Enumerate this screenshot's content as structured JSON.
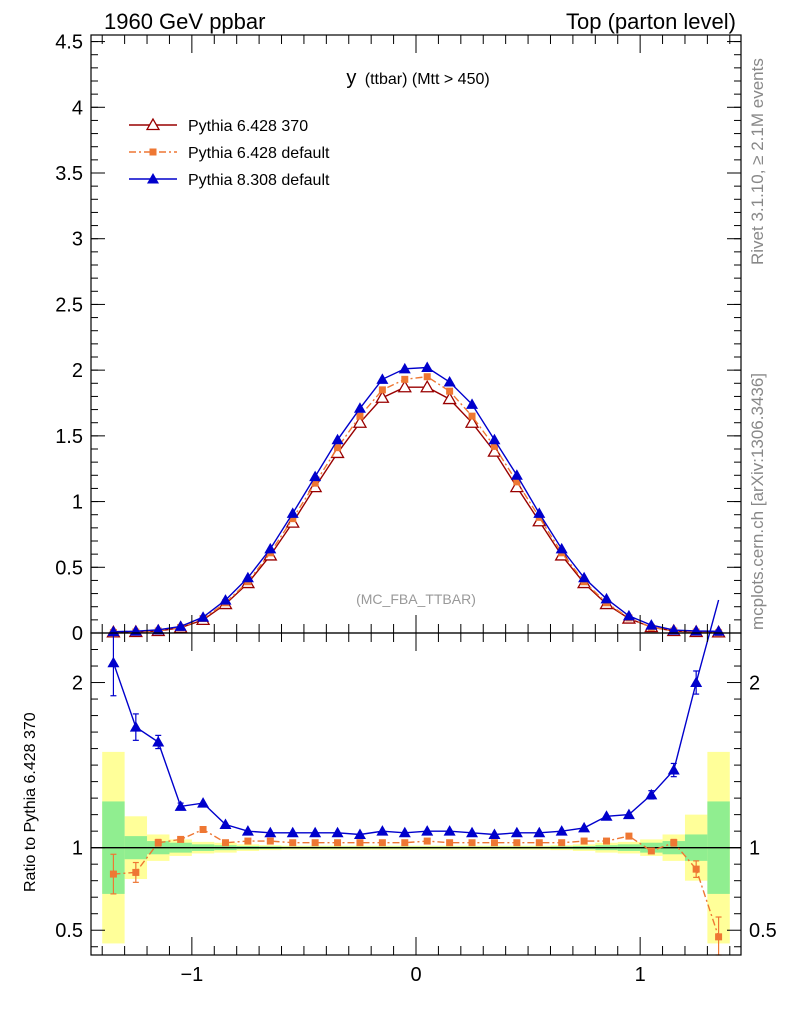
{
  "header": {
    "left": "1960 GeV ppbar",
    "right": "Top (parton level)"
  },
  "side_labels": {
    "rivet": "Rivet 3.1.10, ≥ 2.1M events",
    "mcplots": "mcplots.cern.ch [arXiv:1306.3436]"
  },
  "chart_data": {
    "type": "line",
    "title_main": "y",
    "title_rest": "(ttbar) (Mtt > 450)",
    "analysis": "(MC_FBA_TTBAR)",
    "xlim": [
      -1.45,
      1.45
    ],
    "ylim": [
      0,
      4.55
    ],
    "ratio_ylim": [
      0.35,
      2.3
    ],
    "ratio_ylabel": "Ratio to Pythia 6.428 370",
    "x_ticks": [
      -1,
      0,
      1
    ],
    "x_tick_labels": [
      "−1",
      "0",
      "1"
    ],
    "y_ticks": [
      0,
      0.5,
      1,
      1.5,
      2,
      2.5,
      3,
      3.5,
      4,
      4.5
    ],
    "y_tick_labels": [
      "0",
      "0.5",
      "1",
      "1.5",
      "2",
      "2.5",
      "3",
      "3.5",
      "4",
      "4.5"
    ],
    "ratio_ticks": [
      0.5,
      1,
      2
    ],
    "ratio_tick_labels": [
      "0.5",
      "1",
      "2"
    ],
    "legend_position": "top-left",
    "x": [
      -1.35,
      -1.25,
      -1.15,
      -1.05,
      -0.95,
      -0.85,
      -0.75,
      -0.65,
      -0.55,
      -0.45,
      -0.35,
      -0.25,
      -0.15,
      -0.05,
      0.05,
      0.15,
      0.25,
      0.35,
      0.45,
      0.55,
      0.65,
      0.75,
      0.85,
      0.95,
      1.05,
      1.15,
      1.25,
      1.35
    ],
    "series": [
      {
        "name": "Pythia 6.428 370",
        "color": "#990000",
        "marker": "open-triangle",
        "values": [
          0.005,
          0.008,
          0.015,
          0.04,
          0.1,
          0.22,
          0.38,
          0.59,
          0.84,
          1.11,
          1.37,
          1.6,
          1.79,
          1.87,
          1.87,
          1.78,
          1.6,
          1.38,
          1.11,
          0.85,
          0.59,
          0.38,
          0.22,
          0.11,
          0.045,
          0.015,
          0.008,
          0.005
        ],
        "ratio": [
          1,
          1,
          1,
          1,
          1,
          1,
          1,
          1,
          1,
          1,
          1,
          1,
          1,
          1,
          1,
          1,
          1,
          1,
          1,
          1,
          1,
          1,
          1,
          1,
          1,
          1,
          1,
          1
        ],
        "ratio_err": [
          0,
          0,
          0,
          0,
          0,
          0,
          0,
          0,
          0,
          0,
          0,
          0,
          0,
          0,
          0,
          0,
          0,
          0,
          0,
          0,
          0,
          0,
          0,
          0,
          0,
          0,
          0,
          0
        ]
      },
      {
        "name": "Pythia 6.428 default",
        "color": "#ee7733",
        "marker": "square",
        "values": [
          0.004,
          0.007,
          0.015,
          0.042,
          0.11,
          0.23,
          0.39,
          0.61,
          0.87,
          1.14,
          1.41,
          1.65,
          1.85,
          1.93,
          1.95,
          1.84,
          1.65,
          1.42,
          1.15,
          0.88,
          0.61,
          0.39,
          0.23,
          0.115,
          0.043,
          0.015,
          0.007,
          0.002
        ],
        "ratio": [
          0.84,
          0.85,
          1.03,
          1.05,
          1.11,
          1.03,
          1.04,
          1.04,
          1.03,
          1.03,
          1.03,
          1.03,
          1.03,
          1.03,
          1.04,
          1.03,
          1.03,
          1.03,
          1.03,
          1.03,
          1.03,
          1.04,
          1.04,
          1.07,
          0.98,
          1.03,
          0.87,
          0.46
        ],
        "ratio_err": [
          0.12,
          0.06,
          0.02,
          0.01,
          0.01,
          0.005,
          0.004,
          0.003,
          0.003,
          0.003,
          0.003,
          0.003,
          0.003,
          0.003,
          0.003,
          0.003,
          0.003,
          0.003,
          0.003,
          0.003,
          0.003,
          0.004,
          0.006,
          0.01,
          0.015,
          0.02,
          0.05,
          0.12
        ]
      },
      {
        "name": "Pythia 8.308 default",
        "color": "#0000cc",
        "marker": "filled-triangle",
        "values": [
          0.01,
          0.014,
          0.024,
          0.05,
          0.12,
          0.25,
          0.42,
          0.64,
          0.91,
          1.19,
          1.47,
          1.71,
          1.93,
          2.01,
          2.02,
          1.91,
          1.74,
          1.47,
          1.2,
          0.91,
          0.64,
          0.42,
          0.26,
          0.13,
          0.06,
          0.022,
          0.015,
          0.013
        ],
        "ratio": [
          2.12,
          1.73,
          1.64,
          1.25,
          1.27,
          1.14,
          1.1,
          1.09,
          1.09,
          1.09,
          1.09,
          1.08,
          1.1,
          1.09,
          1.1,
          1.1,
          1.09,
          1.08,
          1.09,
          1.09,
          1.1,
          1.12,
          1.19,
          1.2,
          1.32,
          1.47,
          2.0,
          2.5
        ],
        "ratio_err": [
          0.2,
          0.08,
          0.04,
          0.02,
          0.01,
          0.008,
          0.006,
          0.005,
          0.004,
          0.004,
          0.004,
          0.004,
          0.004,
          0.004,
          0.004,
          0.004,
          0.004,
          0.004,
          0.004,
          0.004,
          0.005,
          0.006,
          0.01,
          0.015,
          0.025,
          0.04,
          0.07,
          0.15
        ]
      }
    ],
    "mc_error_bands": {
      "green_halfwidth": [
        0.28,
        0.07,
        0.04,
        0.03,
        0.02,
        0.015,
        0.01,
        0.008,
        0.006,
        0.006,
        0.006,
        0.006,
        0.006,
        0.006,
        0.006,
        0.006,
        0.006,
        0.006,
        0.006,
        0.006,
        0.008,
        0.01,
        0.015,
        0.02,
        0.03,
        0.04,
        0.08,
        0.28
      ],
      "yellow_halfwidth": [
        0.58,
        0.19,
        0.08,
        0.05,
        0.035,
        0.03,
        0.02,
        0.015,
        0.012,
        0.012,
        0.012,
        0.012,
        0.012,
        0.012,
        0.012,
        0.012,
        0.012,
        0.012,
        0.012,
        0.012,
        0.015,
        0.02,
        0.03,
        0.035,
        0.05,
        0.08,
        0.2,
        0.58
      ],
      "green_color": "#90ee90",
      "yellow_color": "#ffff99"
    }
  }
}
